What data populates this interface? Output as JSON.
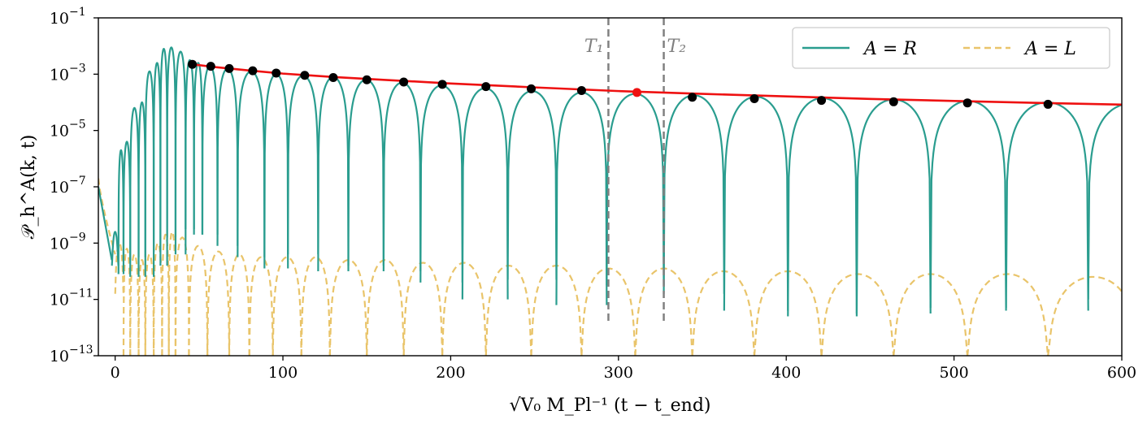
{
  "chart_data": {
    "type": "line",
    "title": "",
    "xlabel": "√V₀ M_Pl⁻¹ (t − t_end)",
    "ylabel": "𝒫_h^A(k, t)",
    "xlim": [
      -10,
      600
    ],
    "ylim_log10": [
      -13,
      -1
    ],
    "yscale": "log",
    "grid": false,
    "x_ticks": [
      0,
      100,
      200,
      300,
      400,
      500,
      600
    ],
    "x_tick_labels": [
      "0",
      "100",
      "200",
      "300",
      "400",
      "500",
      "600"
    ],
    "y_ticks_log10": [
      -13,
      -11,
      -9,
      -7,
      -5,
      -3,
      -1
    ],
    "y_tick_base": "10",
    "y_tick_exponents": [
      "−13",
      "−11",
      "−9",
      "−7",
      "−5",
      "−3",
      "−1"
    ],
    "legend": {
      "placement": "top-right",
      "entries": [
        {
          "label": "A = R",
          "style": "solid",
          "color": "#2a9d8f"
        },
        {
          "label": "A = L",
          "style": "dashed",
          "color": "#e9c46a"
        }
      ]
    },
    "vertical_lines": [
      {
        "label": "T₁",
        "x": 294,
        "y_top_log10": -1.0,
        "y_bottom_log10": -11.9
      },
      {
        "label": "T₂",
        "x": 327,
        "y_top_log10": -1.0,
        "y_bottom_log10": -11.9
      }
    ],
    "series": [
      {
        "name": "A = R",
        "kind": "oscillating envelope",
        "color": "#2a9d8f",
        "lobes": [
          {
            "x0": -2,
            "x1": 2,
            "peak_log10": -8.6,
            "trough_log10": -9.8
          },
          {
            "x0": 2,
            "x1": 5,
            "peak_log10": -5.7,
            "trough_log10": -10.1
          },
          {
            "x0": 5,
            "x1": 9,
            "peak_log10": -5.4,
            "trough_log10": -9.6
          },
          {
            "x0": 9,
            "x1": 14,
            "peak_log10": -4.2,
            "trough_log10": -10.2
          },
          {
            "x0": 14,
            "x1": 18,
            "peak_log10": -4.0,
            "trough_log10": -9.5
          },
          {
            "x0": 18,
            "x1": 23,
            "peak_log10": -2.9,
            "trough_log10": -10.2
          },
          {
            "x0": 23,
            "x1": 27,
            "peak_log10": -2.6,
            "trough_log10": -9.3
          },
          {
            "x0": 27,
            "x1": 31,
            "peak_log10": -2.1,
            "trough_log10": -9.8
          },
          {
            "x0": 31,
            "x1": 36,
            "peak_log10": -2.05,
            "trough_log10": -8.8
          },
          {
            "x0": 36,
            "x1": 42,
            "peak_log10": -2.2,
            "trough_log10": -9.4
          },
          {
            "x0": 42,
            "x1": 47,
            "peak_log10": -2.5,
            "trough_log10": -8.5
          },
          {
            "x0": 47,
            "x1": 52,
            "peak_log10": -2.6,
            "trough_log10": -8.7
          },
          {
            "x0": 52,
            "x1": 61,
            "peak_log10": -2.7,
            "trough_log10": -8.7
          },
          {
            "x0": 61,
            "x1": 73,
            "peak_log10": -2.8,
            "trough_log10": -9.1
          },
          {
            "x0": 73,
            "x1": 89,
            "peak_log10": -2.9,
            "trough_log10": -9.5
          },
          {
            "x0": 89,
            "x1": 103,
            "peak_log10": -3.0,
            "trough_log10": -9.9
          },
          {
            "x0": 103,
            "x1": 121,
            "peak_log10": -3.05,
            "trough_log10": -9.4
          },
          {
            "x0": 121,
            "x1": 139,
            "peak_log10": -3.1,
            "trough_log10": -10.0
          },
          {
            "x0": 139,
            "x1": 160,
            "peak_log10": -3.2,
            "trough_log10": -9.8
          },
          {
            "x0": 160,
            "x1": 182,
            "peak_log10": -3.3,
            "trough_log10": -10.0
          },
          {
            "x0": 182,
            "x1": 207,
            "peak_log10": -3.4,
            "trough_log10": -10.4
          },
          {
            "x0": 207,
            "x1": 234,
            "peak_log10": -3.5,
            "trough_log10": -11.0
          },
          {
            "x0": 234,
            "x1": 263,
            "peak_log10": -3.6,
            "trough_log10": -10.3
          },
          {
            "x0": 263,
            "x1": 293,
            "peak_log10": -3.65,
            "trough_log10": -11.2
          },
          {
            "x0": 293,
            "x1": 327,
            "peak_log10": -3.7,
            "trough_log10": -10.5
          },
          {
            "x0": 327,
            "x1": 363,
            "peak_log10": -3.75,
            "trough_log10": -10.8
          },
          {
            "x0": 363,
            "x1": 401,
            "peak_log10": -3.8,
            "trough_log10": -11.4
          },
          {
            "x0": 401,
            "x1": 442,
            "peak_log10": -3.85,
            "trough_log10": -11.6
          },
          {
            "x0": 442,
            "x1": 486,
            "peak_log10": -3.9,
            "trough_log10": -11.5
          },
          {
            "x0": 486,
            "x1": 531,
            "peak_log10": -3.95,
            "trough_log10": -11.3
          },
          {
            "x0": 531,
            "x1": 580,
            "peak_log10": -4.0,
            "trough_log10": -11.4
          },
          {
            "x0": 580,
            "x1": 630,
            "peak_log10": -4.05,
            "trough_log10": -11.0
          }
        ]
      },
      {
        "name": "A = L",
        "kind": "oscillating envelope",
        "color": "#e9c46a",
        "initial": {
          "x0": -10,
          "x1": 0,
          "y0_log10": -6.7,
          "y1_log10": -9.4
        },
        "lobes": [
          {
            "x0": 0,
            "x1": 5,
            "peak_log10": -9.0,
            "trough_log10": -10.8
          },
          {
            "x0": 5,
            "x1": 9,
            "peak_log10": -9.2,
            "trough_log10": -13.0
          },
          {
            "x0": 9,
            "x1": 14,
            "peak_log10": -9.4,
            "trough_log10": -13.0
          },
          {
            "x0": 14,
            "x1": 18,
            "peak_log10": -9.6,
            "trough_log10": -13.0
          },
          {
            "x0": 18,
            "x1": 23,
            "peak_log10": -9.4,
            "trough_log10": -13.0
          },
          {
            "x0": 23,
            "x1": 28,
            "peak_log10": -9.0,
            "trough_log10": -13.0
          },
          {
            "x0": 28,
            "x1": 32,
            "peak_log10": -8.7,
            "trough_log10": -13.0
          },
          {
            "x0": 32,
            "x1": 36,
            "peak_log10": -8.6,
            "trough_log10": -13.0
          },
          {
            "x0": 36,
            "x1": 44,
            "peak_log10": -8.8,
            "trough_log10": -13.0
          },
          {
            "x0": 44,
            "x1": 55,
            "peak_log10": -9.1,
            "trough_log10": -13.0
          },
          {
            "x0": 55,
            "x1": 68,
            "peak_log10": -9.3,
            "trough_log10": -13.0
          },
          {
            "x0": 68,
            "x1": 80,
            "peak_log10": -9.4,
            "trough_log10": -13.0
          },
          {
            "x0": 80,
            "x1": 94,
            "peak_log10": -9.5,
            "trough_log10": -13.0
          },
          {
            "x0": 94,
            "x1": 111,
            "peak_log10": -9.5,
            "trough_log10": -13.0
          },
          {
            "x0": 111,
            "x1": 128,
            "peak_log10": -9.5,
            "trough_log10": -13.0
          },
          {
            "x0": 128,
            "x1": 150,
            "peak_log10": -9.6,
            "trough_log10": -13.0
          },
          {
            "x0": 150,
            "x1": 172,
            "peak_log10": -9.6,
            "trough_log10": -13.0
          },
          {
            "x0": 172,
            "x1": 195,
            "peak_log10": -9.7,
            "trough_log10": -13.0
          },
          {
            "x0": 195,
            "x1": 221,
            "peak_log10": -9.7,
            "trough_log10": -13.0
          },
          {
            "x0": 221,
            "x1": 248,
            "peak_log10": -9.8,
            "trough_log10": -13.0
          },
          {
            "x0": 248,
            "x1": 278,
            "peak_log10": -9.8,
            "trough_log10": -13.0
          },
          {
            "x0": 278,
            "x1": 310,
            "peak_log10": -9.9,
            "trough_log10": -13.0
          },
          {
            "x0": 310,
            "x1": 344,
            "peak_log10": -9.9,
            "trough_log10": -13.0
          },
          {
            "x0": 344,
            "x1": 381,
            "peak_log10": -10.0,
            "trough_log10": -13.0
          },
          {
            "x0": 381,
            "x1": 421,
            "peak_log10": -10.0,
            "trough_log10": -13.0
          },
          {
            "x0": 421,
            "x1": 464,
            "peak_log10": -10.1,
            "trough_log10": -13.0
          },
          {
            "x0": 464,
            "x1": 508,
            "peak_log10": -10.1,
            "trough_log10": -13.0
          },
          {
            "x0": 508,
            "x1": 556,
            "peak_log10": -10.1,
            "trough_log10": -13.0
          },
          {
            "x0": 556,
            "x1": 610,
            "peak_log10": -10.2,
            "trough_log10": -13.0
          }
        ]
      },
      {
        "name": "fit",
        "kind": "smooth curve",
        "color": "#ee1111",
        "x": [
          46,
          60,
          80,
          100,
          130,
          160,
          200,
          250,
          300,
          350,
          400,
          450,
          500,
          550,
          600
        ],
        "y_log10": [
          -2.65,
          -2.75,
          -2.87,
          -2.98,
          -3.1,
          -3.2,
          -3.33,
          -3.47,
          -3.6,
          -3.7,
          -3.79,
          -3.88,
          -3.95,
          -4.02,
          -4.08
        ]
      }
    ],
    "markers": {
      "black": {
        "x": [
          46,
          57,
          68,
          82,
          96,
          113,
          130,
          150,
          172,
          195,
          221,
          248,
          278,
          344,
          381,
          421,
          464,
          508,
          556
        ],
        "y_log10": [
          -2.65,
          -2.72,
          -2.8,
          -2.88,
          -2.96,
          -3.04,
          -3.12,
          -3.2,
          -3.28,
          -3.36,
          -3.44,
          -3.52,
          -3.58,
          -3.82,
          -3.87,
          -3.93,
          -3.98,
          -4.02,
          -4.07
        ]
      },
      "red": {
        "x": [
          311
        ],
        "y_log10": [
          -3.65
        ]
      }
    }
  }
}
